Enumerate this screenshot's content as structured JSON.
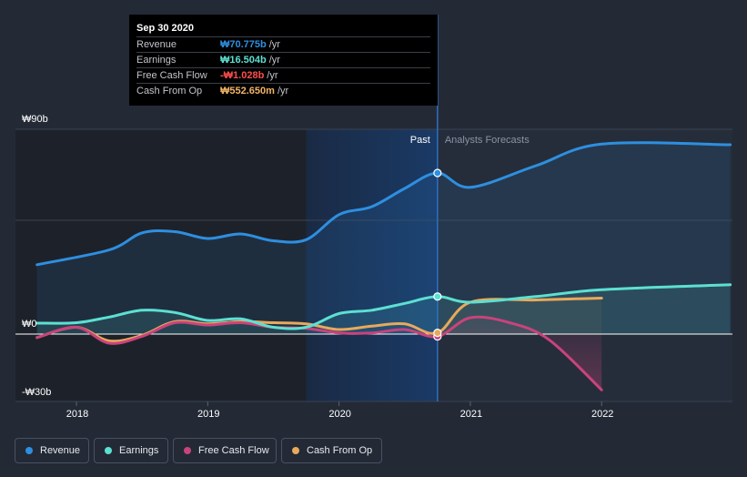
{
  "tooltip": {
    "date": "Sep 30 2020",
    "rows": [
      {
        "label": "Revenue",
        "value": "₩70.775b",
        "unit": "/yr",
        "color": "#2e8fe0"
      },
      {
        "label": "Earnings",
        "value": "₩16.504b",
        "unit": "/yr",
        "color": "#5ce0d2"
      },
      {
        "label": "Free Cash Flow",
        "value": "-₩1.028b",
        "unit": "/yr",
        "color": "#ff4d4d"
      },
      {
        "label": "Cash From Op",
        "value": "₩552.650m",
        "unit": "/yr",
        "color": "#f2b466"
      }
    ]
  },
  "legend": [
    {
      "label": "Revenue",
      "color": "#2e8fe0"
    },
    {
      "label": "Earnings",
      "color": "#5ce0d2"
    },
    {
      "label": "Free Cash Flow",
      "color": "#c9437c"
    },
    {
      "label": "Cash From Op",
      "color": "#e8a95c"
    }
  ],
  "chart_data": {
    "type": "line",
    "title": "",
    "xlabel": "",
    "ylabel": "",
    "unit": "KRW billions",
    "xlim": [
      2017.6,
      2022.98
    ],
    "ylim": [
      -30,
      90
    ],
    "y_tick_labels": [
      {
        "value": 90,
        "label": "₩90b"
      },
      {
        "value": 0,
        "label": "₩0"
      },
      {
        "value": -30,
        "label": "-₩30b"
      }
    ],
    "x_ticks": [
      {
        "value": 2018,
        "label": "2018"
      },
      {
        "value": 2019,
        "label": "2019"
      },
      {
        "value": 2020,
        "label": "2020"
      },
      {
        "value": 2021,
        "label": "2021"
      },
      {
        "value": 2022,
        "label": "2022"
      }
    ],
    "past_label": "Past",
    "forecast_label": "Analysts Forecasts",
    "divider_x": 2020.75,
    "highlight_start_x": 2019.75,
    "series": [
      {
        "name": "Revenue",
        "color": "#2e8fe0",
        "fill": true,
        "points": [
          [
            2017.7,
            30.5
          ],
          [
            2018.25,
            37
          ],
          [
            2018.5,
            44.5
          ],
          [
            2018.75,
            45
          ],
          [
            2019.0,
            42
          ],
          [
            2019.25,
            44
          ],
          [
            2019.5,
            41
          ],
          [
            2019.75,
            41.5
          ],
          [
            2020.0,
            52.5
          ],
          [
            2020.25,
            56
          ],
          [
            2020.5,
            64
          ],
          [
            2020.75,
            70.8
          ],
          [
            2021.0,
            64.5
          ],
          [
            2021.5,
            74
          ],
          [
            2022.0,
            83.5
          ],
          [
            2022.98,
            83.2
          ]
        ]
      },
      {
        "name": "Earnings",
        "color": "#5ce0d2",
        "fill": true,
        "points": [
          [
            2017.7,
            4.8
          ],
          [
            2018.0,
            5
          ],
          [
            2018.25,
            7.5
          ],
          [
            2018.5,
            10.5
          ],
          [
            2018.75,
            9.5
          ],
          [
            2019.0,
            6
          ],
          [
            2019.25,
            6.7
          ],
          [
            2019.5,
            3
          ],
          [
            2019.75,
            3
          ],
          [
            2020.0,
            9
          ],
          [
            2020.25,
            10.5
          ],
          [
            2020.5,
            13.5
          ],
          [
            2020.75,
            16.5
          ],
          [
            2021.0,
            14
          ],
          [
            2021.5,
            16.5
          ],
          [
            2022.0,
            19.5
          ],
          [
            2022.98,
            21.7
          ]
        ]
      },
      {
        "name": "Free Cash Flow",
        "color": "#c9437c",
        "fill": false,
        "points": [
          [
            2017.7,
            -1.5
          ],
          [
            2018.0,
            3
          ],
          [
            2018.25,
            -4
          ],
          [
            2018.5,
            -1
          ],
          [
            2018.75,
            5
          ],
          [
            2019.0,
            4
          ],
          [
            2019.25,
            5
          ],
          [
            2019.5,
            3
          ],
          [
            2019.75,
            2.5
          ],
          [
            2020.0,
            0.5
          ],
          [
            2020.25,
            0.5
          ],
          [
            2020.5,
            2
          ],
          [
            2020.75,
            -1.03
          ],
          [
            2021.0,
            7.2
          ],
          [
            2021.3,
            5
          ],
          [
            2021.6,
            -2.5
          ],
          [
            2022.0,
            -24.5
          ]
        ]
      },
      {
        "name": "Cash From Op",
        "color": "#e8a95c",
        "fill": false,
        "points": [
          [
            2017.7,
            -1.5
          ],
          [
            2018.0,
            3
          ],
          [
            2018.25,
            -3
          ],
          [
            2018.5,
            -0.5
          ],
          [
            2018.75,
            5.5
          ],
          [
            2019.0,
            4.5
          ],
          [
            2019.25,
            5.5
          ],
          [
            2019.5,
            5
          ],
          [
            2019.75,
            4.5
          ],
          [
            2020.0,
            2
          ],
          [
            2020.25,
            3.5
          ],
          [
            2020.5,
            4.5
          ],
          [
            2020.75,
            0.55
          ],
          [
            2021.0,
            14
          ],
          [
            2021.5,
            15
          ],
          [
            2022.0,
            15.8
          ]
        ]
      }
    ]
  }
}
